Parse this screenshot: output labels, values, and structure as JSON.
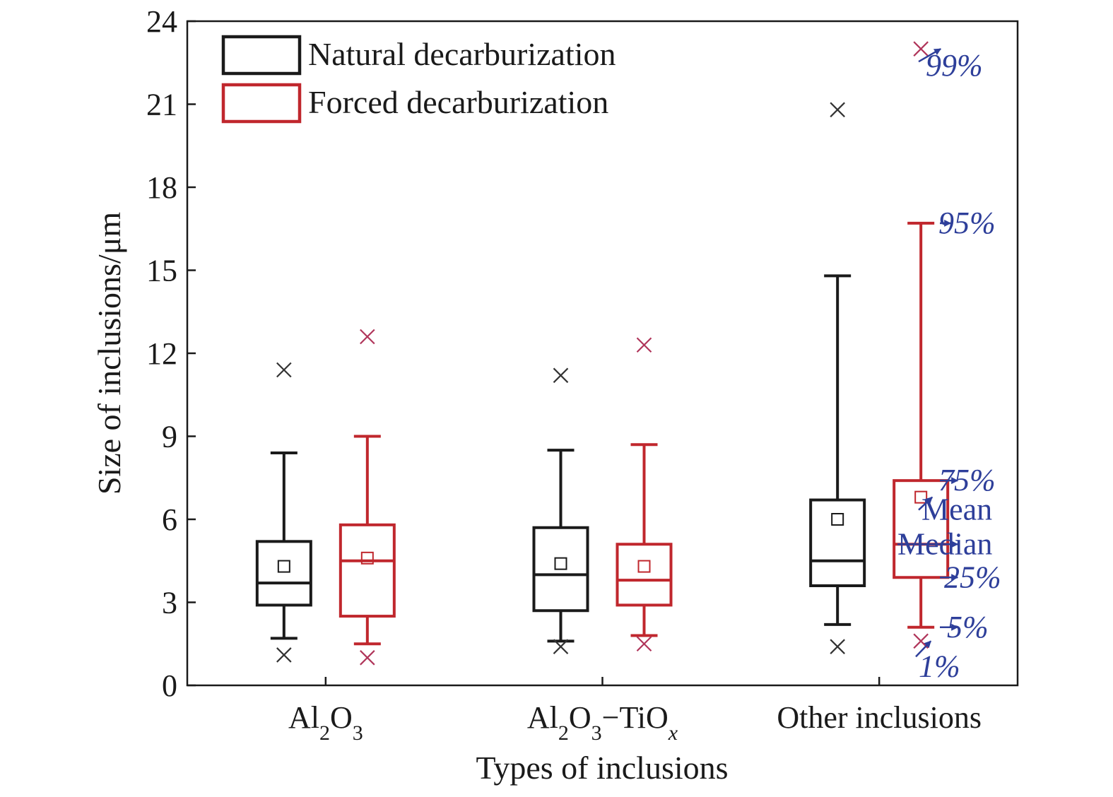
{
  "chart_data": {
    "type": "box",
    "xlabel": "Types of inclusions",
    "ylabel": "Size of inclusions/μm",
    "ylim": [
      0,
      24
    ],
    "yticks": [
      "0",
      "3",
      "6",
      "9",
      "12",
      "15",
      "18",
      "21",
      "24"
    ],
    "grid": false,
    "legend_position": "top-left",
    "categories": [
      {
        "pre": "Al",
        "s1": "2",
        "mid": "O",
        "s2": "3",
        "post": "",
        "var": ""
      },
      {
        "pre": "Al",
        "s1": "2",
        "mid": "O",
        "s2": "3",
        "post": "−TiO",
        "var": "x"
      },
      {
        "pre": "Other inclusions",
        "s1": "",
        "mid": "",
        "s2": "",
        "post": "",
        "var": ""
      }
    ],
    "series": [
      {
        "name": "Natural decarburization",
        "color": "#1a1a1a",
        "boxes": [
          {
            "p1": 1.1,
            "p5": 1.7,
            "q1": 2.9,
            "median": 3.7,
            "q3": 5.2,
            "p95": 8.4,
            "p99": 11.4,
            "mean": 4.3
          },
          {
            "p1": 1.4,
            "p5": 1.6,
            "q1": 2.7,
            "median": 4.0,
            "q3": 5.7,
            "p95": 8.5,
            "p99": 11.2,
            "mean": 4.4
          },
          {
            "p1": 1.4,
            "p5": 2.2,
            "q1": 3.6,
            "median": 4.5,
            "q3": 6.7,
            "p95": 14.8,
            "p99": 20.8,
            "mean": 6.0
          }
        ]
      },
      {
        "name": "Forced decarburization",
        "color": "#c0272d",
        "boxes": [
          {
            "p1": 1.0,
            "p5": 1.5,
            "q1": 2.5,
            "median": 4.5,
            "q3": 5.8,
            "p95": 9.0,
            "p99": 12.6,
            "mean": 4.6
          },
          {
            "p1": 1.5,
            "p5": 1.8,
            "q1": 2.9,
            "median": 3.8,
            "q3": 5.1,
            "p95": 8.7,
            "p99": 12.3,
            "mean": 4.3
          },
          {
            "p1": 1.6,
            "p5": 2.1,
            "q1": 3.9,
            "median": 5.1,
            "q3": 7.4,
            "p95": 16.7,
            "p99": 23.0,
            "mean": 6.8
          }
        ]
      }
    ],
    "annotations": {
      "color": "#2e3f9a",
      "labels": {
        "p99": "99%",
        "p95": "95%",
        "q3": "75%",
        "mean": "Mean",
        "median": "Median",
        "q1": "25%",
        "p5": "5%",
        "p1": "1%"
      }
    }
  }
}
